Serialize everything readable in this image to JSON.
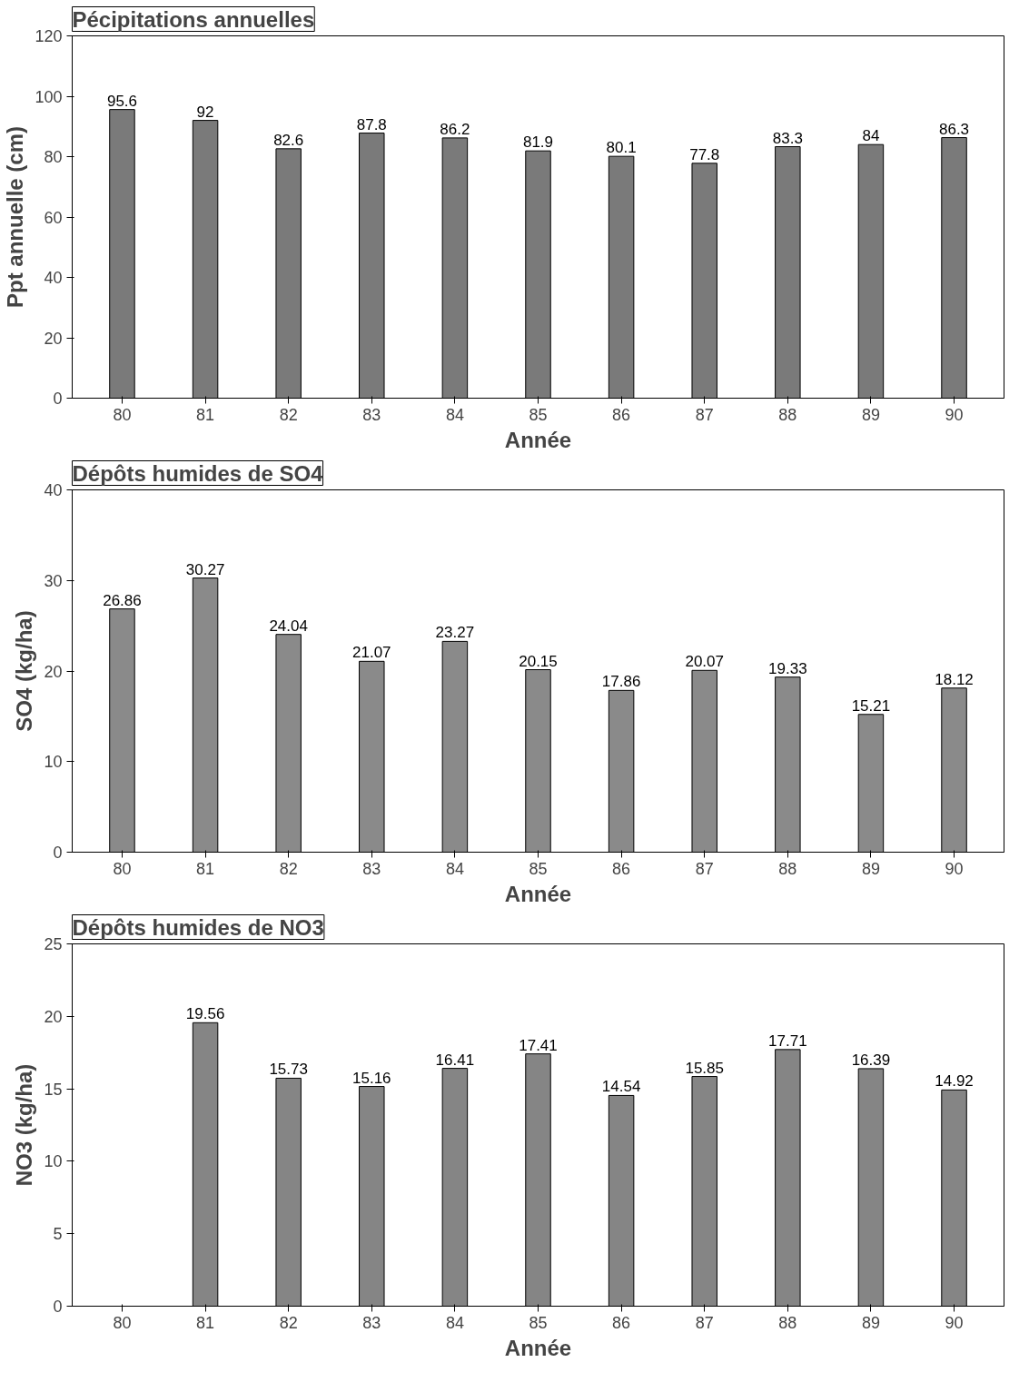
{
  "chart_data": [
    {
      "type": "bar",
      "title": "Pécipitations annuelles",
      "xlabel": "Année",
      "ylabel": "Ppt annuelle (cm)",
      "categories": [
        "80",
        "81",
        "82",
        "83",
        "84",
        "85",
        "86",
        "87",
        "88",
        "89",
        "90"
      ],
      "values": [
        95.6,
        92,
        82.6,
        87.8,
        86.2,
        81.9,
        80.1,
        77.8,
        83.3,
        84,
        86.3
      ],
      "color": "#7a7a7a",
      "ylim": [
        0,
        120
      ],
      "yticks": [
        0,
        20,
        40,
        60,
        80,
        100,
        120
      ],
      "data_labels": true
    },
    {
      "type": "bar",
      "title": "Dépôts humides de SO4",
      "xlabel": "Année",
      "ylabel": "SO4 (kg/ha)",
      "categories": [
        "80",
        "81",
        "82",
        "83",
        "84",
        "85",
        "86",
        "87",
        "88",
        "89",
        "90"
      ],
      "values": [
        26.86,
        30.27,
        24.04,
        21.07,
        23.27,
        20.15,
        17.86,
        20.07,
        19.33,
        15.21,
        18.12
      ],
      "color": "#8a8a8a",
      "ylim": [
        0,
        40
      ],
      "yticks": [
        0,
        10,
        20,
        30,
        40
      ],
      "data_labels": true
    },
    {
      "type": "bar",
      "title": "Dépôts humides de NO3",
      "xlabel": "Année",
      "ylabel": "NO3 (kg/ha)",
      "categories": [
        "80",
        "81",
        "82",
        "83",
        "84",
        "85",
        "86",
        "87",
        "88",
        "89",
        "90"
      ],
      "values": [
        null,
        19.56,
        15.73,
        15.16,
        16.41,
        17.41,
        14.54,
        15.85,
        17.71,
        16.39,
        14.92
      ],
      "color": "#858585",
      "ylim": [
        0,
        25
      ],
      "yticks": [
        0,
        5,
        10,
        15,
        20,
        25
      ],
      "data_labels": true
    }
  ]
}
